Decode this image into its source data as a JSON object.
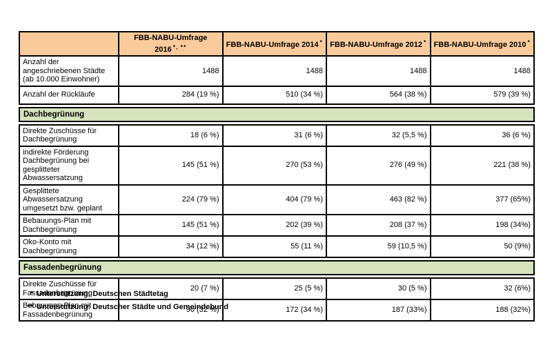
{
  "colors": {
    "header_bg": "#F9CB9C",
    "section_bg": "#D6E3BC",
    "border": "#000000"
  },
  "table": {
    "header": {
      "corner": "",
      "cols": [
        {
          "label": "FBB-NABU-Umfrage 2016",
          "note": "*, **"
        },
        {
          "label": "FBB-NABU-Umfrage 2014",
          "note": "*"
        },
        {
          "label": "FBB-NABU-Umfrage 2012",
          "note": "*"
        },
        {
          "label": "FBB-NABU-Umfrage 2010",
          "note": "*"
        }
      ]
    },
    "summary_rows": [
      {
        "label": "Anzahl der angeschriebenen Städte (ab 10.000 Einwohner)",
        "values": [
          "1488",
          "1488",
          "1488",
          "1488"
        ]
      },
      {
        "label": "Anzahl der Rückläufe",
        "values": [
          "284 (19 %)",
          "510 (34 %)",
          "564 (38 %)",
          "579 (39 %)"
        ]
      }
    ],
    "sections": [
      {
        "title": "Dachbegrünung",
        "rows": [
          {
            "label": "Direkte Zuschüsse für Dachbegrünung",
            "values": [
              "18 (6 %)",
              "31 (6 %)",
              "32 (5,5 %)",
              "36 (6 %)"
            ]
          },
          {
            "label": "indirekte Förderung Dachbegrünung bei gesplitteter Abwassersatzung",
            "values": [
              "145 (51 %)",
              "270 (53 %)",
              "276 (49 %)",
              "221 (38 %)"
            ]
          },
          {
            "label": "Gesplittete Abwassersatzung umgesetzt bzw. geplant",
            "values": [
              "224 (79 %)",
              "404 (79 %)",
              "463 (82 %)",
              "377 (65%)"
            ]
          },
          {
            "label": "Bebauungs-Plan mit Dachbegrünung",
            "values": [
              "145 (51 %)",
              "202 (39 %)",
              "208 (37 %)",
              "198 (34%)"
            ]
          },
          {
            "label": "Oko-Konto mit Dachbegrünung",
            "values": [
              "34 (12 %)",
              "55 (11 %)",
              "59 (10,5 %)",
              "50 (9%)"
            ]
          }
        ]
      },
      {
        "title": "Fassadenbegrünung",
        "rows": [
          {
            "label": "Direkte Zuschüsse für Fassadenbegrünung",
            "values": [
              "20 (7 %)",
              "25 (5 %)",
              "30 (5 %)",
              "32 (6%)"
            ]
          },
          {
            "label": "Bebauungs-Plan mit Fassadenbegrünung",
            "values": [
              "90 (32 %)",
              "172 (34 %)",
              "187 (33%)",
              "188 (32%)"
            ]
          }
        ]
      }
    ]
  },
  "footnotes": [
    {
      "marker": "*",
      "text": "Unterstützung: Deutschen Städtetag"
    },
    {
      "marker": "**",
      "text": "Unterstützung: Deutscher Städte und Gemeindebund"
    }
  ]
}
